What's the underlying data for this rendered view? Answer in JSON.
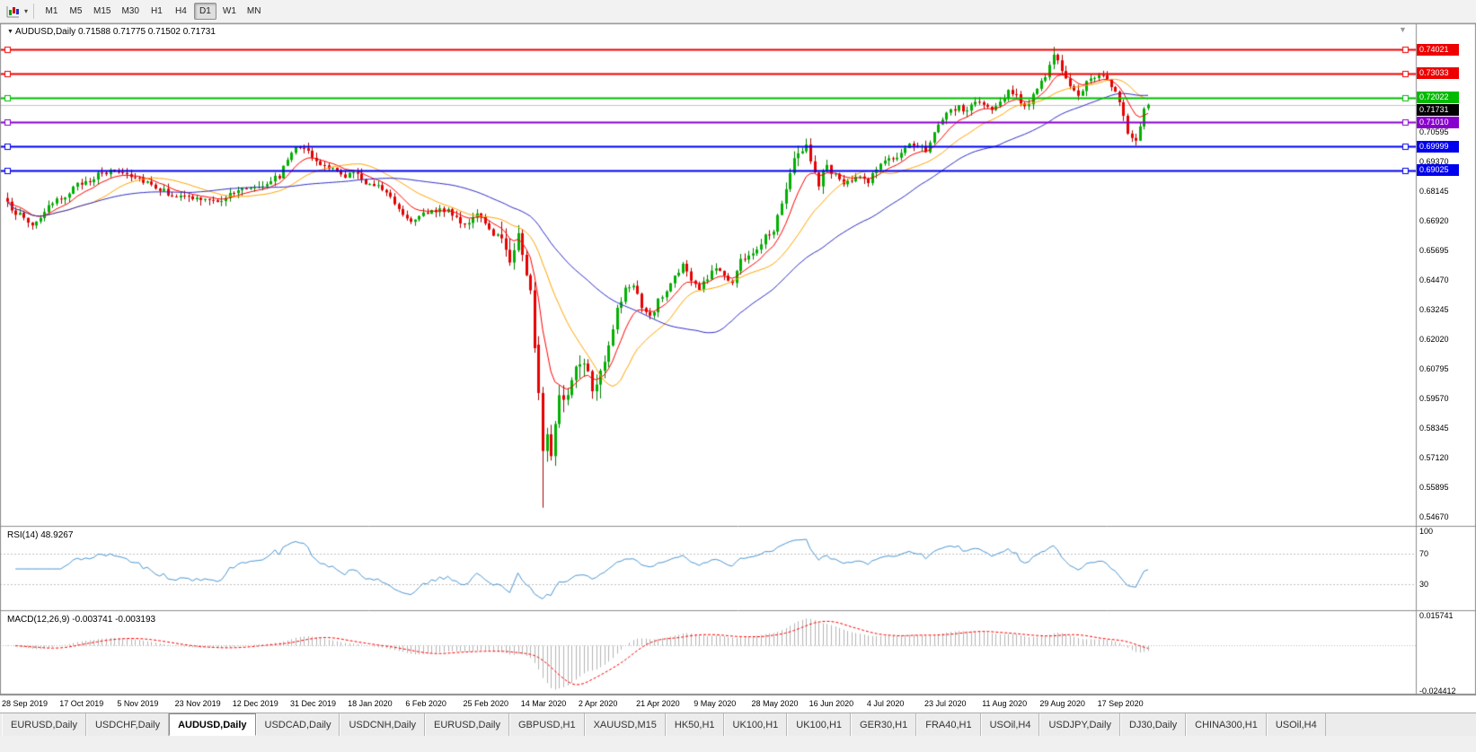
{
  "toolbar": {
    "caret_icon": "▾",
    "periods": [
      {
        "label": "M1",
        "active": false
      },
      {
        "label": "M5",
        "active": false
      },
      {
        "label": "M15",
        "active": false
      },
      {
        "label": "M30",
        "active": false
      },
      {
        "label": "H1",
        "active": false
      },
      {
        "label": "H4",
        "active": false
      },
      {
        "label": "D1",
        "active": true
      },
      {
        "label": "W1",
        "active": false
      },
      {
        "label": "MN",
        "active": false
      }
    ]
  },
  "chart": {
    "collapse_triangle": "▼",
    "title_symbol": "AUDUSD,Daily",
    "title_ohlc": "0.71588 0.71775 0.71502 0.71731",
    "rsi_title": "RSI(14)",
    "rsi_value": "48.9267",
    "macd_title": "MACD(12,26,9)",
    "macd_values": "-0.003741 -0.003193",
    "scroll_marker_icon": "▼"
  },
  "chart_data": {
    "type": "candlestick",
    "symbol": "AUDUSD",
    "timeframe": "Daily",
    "title": "AUDUSD,Daily",
    "ohlc": {
      "open": 0.71588,
      "high": 0.71775,
      "low": 0.71502,
      "close": 0.71731
    },
    "n_candles": 278,
    "y_axis": {
      "max": 0.751,
      "min": 0.543,
      "grid_labels": [
        "0.70595",
        "0.69370",
        "0.68145",
        "0.66920",
        "0.65695",
        "0.64470",
        "0.63245",
        "0.62020",
        "0.60795",
        "0.59570",
        "0.58345",
        "0.57120",
        "0.55895",
        "0.54670"
      ]
    },
    "x_labels": [
      "28 Sep 2019",
      "17 Oct 2019",
      "5 Nov 2019",
      "23 Nov 2019",
      "12 Dec 2019",
      "31 Dec 2019",
      "18 Jan 2020",
      "6 Feb 2020",
      "25 Feb 2020",
      "14 Mar 2020",
      "2 Apr 2020",
      "21 Apr 2020",
      "9 May 2020",
      "28 May 2020",
      "16 Jun 2020",
      "4 Jul 2020",
      "23 Jul 2020",
      "11 Aug 2020",
      "29 Aug 2020",
      "17 Sep 2020"
    ],
    "h_lines": [
      {
        "label": "0.74021",
        "value": 0.74021,
        "color": "#ee0000",
        "width": 2
      },
      {
        "label": "0.73033",
        "value": 0.73033,
        "color": "#ee0000",
        "width": 2
      },
      {
        "label": "0.72022",
        "value": 0.72022,
        "color": "#00bb00",
        "width": 2
      },
      {
        "label": "0.71010",
        "value": 0.7101,
        "color": "#8800cc",
        "width": 2
      },
      {
        "label": "0.69999",
        "value": 0.69999,
        "color": "#0000ee",
        "width": 2
      },
      {
        "label": "0.69025",
        "value": 0.69025,
        "color": "#0000ee",
        "width": 2
      }
    ],
    "current_price": {
      "label": "0.71731",
      "value": 0.71731,
      "badge_color": "#000000",
      "line_color": "#c4c4c4"
    },
    "candle_colors": {
      "up": "#00b000",
      "up_border": "#007d00",
      "down": "#e60000",
      "down_border": "#aa0000"
    },
    "moving_averages": [
      {
        "type": "ema",
        "period": 9,
        "color": "#ff0000"
      },
      {
        "type": "sma",
        "period": 20,
        "color": "#ffa500"
      },
      {
        "type": "sma",
        "period": 45,
        "color": "#2d2dc8"
      }
    ],
    "noise": {
      "base": 0.0013,
      "ranges": [
        [
          120,
          145,
          0.0032
        ],
        [
          188,
          198,
          0.002
        ]
      ],
      "wick_factor": 1.8,
      "seed": 987654321
    },
    "close_path_anchors": [
      [
        0,
        0.676
      ],
      [
        3,
        0.6715
      ],
      [
        6,
        0.6675
      ],
      [
        10,
        0.6745
      ],
      [
        14,
        0.68
      ],
      [
        18,
        0.685
      ],
      [
        22,
        0.688
      ],
      [
        26,
        0.69
      ],
      [
        30,
        0.6885
      ],
      [
        34,
        0.6855
      ],
      [
        38,
        0.6815
      ],
      [
        42,
        0.679
      ],
      [
        46,
        0.6785
      ],
      [
        50,
        0.677
      ],
      [
        54,
        0.68
      ],
      [
        58,
        0.683
      ],
      [
        62,
        0.6845
      ],
      [
        66,
        0.688
      ],
      [
        70,
        0.701
      ],
      [
        72,
        0.7
      ],
      [
        75,
        0.693
      ],
      [
        78,
        0.6915
      ],
      [
        81,
        0.688
      ],
      [
        84,
        0.689
      ],
      [
        87,
        0.6855
      ],
      [
        90,
        0.684
      ],
      [
        93,
        0.68
      ],
      [
        96,
        0.672
      ],
      [
        99,
        0.669
      ],
      [
        102,
        0.673
      ],
      [
        105,
        0.6745
      ],
      [
        108,
        0.672
      ],
      [
        111,
        0.668
      ],
      [
        114,
        0.6715
      ],
      [
        117,
        0.6655
      ],
      [
        120,
        0.662
      ],
      [
        122,
        0.6545
      ],
      [
        124,
        0.663
      ],
      [
        126,
        0.648
      ],
      [
        127,
        0.639
      ],
      [
        128,
        0.618
      ],
      [
        129,
        0.598
      ],
      [
        130,
        0.574
      ],
      [
        131,
        0.581
      ],
      [
        132,
        0.575
      ],
      [
        133,
        0.583
      ],
      [
        134,
        0.595
      ],
      [
        136,
        0.598
      ],
      [
        138,
        0.609
      ],
      [
        140,
        0.613
      ],
      [
        142,
        0.601
      ],
      [
        144,
        0.608
      ],
      [
        146,
        0.618
      ],
      [
        148,
        0.632
      ],
      [
        150,
        0.6405
      ],
      [
        152,
        0.6435
      ],
      [
        154,
        0.633
      ],
      [
        156,
        0.629
      ],
      [
        158,
        0.636
      ],
      [
        160,
        0.64
      ],
      [
        162,
        0.6465
      ],
      [
        164,
        0.651
      ],
      [
        166,
        0.6445
      ],
      [
        168,
        0.641
      ],
      [
        170,
        0.6455
      ],
      [
        172,
        0.6505
      ],
      [
        174,
        0.6465
      ],
      [
        176,
        0.644
      ],
      [
        178,
        0.653
      ],
      [
        180,
        0.655
      ],
      [
        182,
        0.6565
      ],
      [
        184,
        0.664
      ],
      [
        186,
        0.6655
      ],
      [
        188,
        0.678
      ],
      [
        190,
        0.69
      ],
      [
        192,
        0.698
      ],
      [
        194,
        0.701
      ],
      [
        195,
        0.693
      ],
      [
        197,
        0.685
      ],
      [
        199,
        0.692
      ],
      [
        201,
        0.688
      ],
      [
        203,
        0.684
      ],
      [
        205,
        0.686
      ],
      [
        207,
        0.687
      ],
      [
        209,
        0.686
      ],
      [
        211,
        0.691
      ],
      [
        213,
        0.694
      ],
      [
        215,
        0.695
      ],
      [
        217,
        0.6965
      ],
      [
        219,
        0.7
      ],
      [
        221,
        0.701
      ],
      [
        223,
        0.699
      ],
      [
        225,
        0.706
      ],
      [
        227,
        0.7105
      ],
      [
        229,
        0.715
      ],
      [
        231,
        0.716
      ],
      [
        233,
        0.7145
      ],
      [
        235,
        0.719
      ],
      [
        237,
        0.717
      ],
      [
        239,
        0.715
      ],
      [
        241,
        0.7175
      ],
      [
        243,
        0.724
      ],
      [
        245,
        0.721
      ],
      [
        247,
        0.7165
      ],
      [
        249,
        0.7205
      ],
      [
        251,
        0.726
      ],
      [
        253,
        0.733
      ],
      [
        254,
        0.738
      ],
      [
        256,
        0.731
      ],
      [
        258,
        0.724
      ],
      [
        260,
        0.7215
      ],
      [
        262,
        0.726
      ],
      [
        264,
        0.729
      ],
      [
        266,
        0.7305
      ],
      [
        268,
        0.7255
      ],
      [
        270,
        0.719
      ],
      [
        272,
        0.706
      ],
      [
        274,
        0.703
      ],
      [
        275,
        0.7075
      ],
      [
        276,
        0.7159
      ],
      [
        277,
        0.71731
      ]
    ],
    "forced_candles": {
      "129": [
        0.618,
        0.6215,
        0.595,
        0.598
      ],
      "130": [
        0.598,
        0.6005,
        0.5505,
        0.574
      ],
      "254": [
        0.734,
        0.7413,
        0.732,
        0.738
      ],
      "277": [
        0.71588,
        0.71775,
        0.71502,
        0.71731
      ]
    },
    "rsi": {
      "period": 14,
      "color": "#4a96d2",
      "levels": [
        "100",
        "70",
        "30"
      ],
      "level_values": [
        100,
        70,
        30
      ],
      "dashed_levels": [
        70,
        30
      ],
      "current": "48.9267"
    },
    "macd": {
      "fast": 12,
      "slow": 26,
      "signal": 9,
      "histogram_color": "#b4b4b4",
      "signal_color": "#ff0000",
      "scale_top": 0.015741,
      "scale_bottom": -0.024412,
      "scale_top_label": "0.015741",
      "scale_bottom_label": "-0.024412",
      "current": "-0.003741 -0.003193"
    }
  },
  "tabs": {
    "items": [
      {
        "label": "EURUSD,Daily",
        "active": false
      },
      {
        "label": "USDCHF,Daily",
        "active": false
      },
      {
        "label": "AUDUSD,Daily",
        "active": true
      },
      {
        "label": "USDCAD,Daily",
        "active": false
      },
      {
        "label": "USDCNH,Daily",
        "active": false
      },
      {
        "label": "EURUSD,Daily",
        "active": false
      },
      {
        "label": "GBPUSD,H1",
        "active": false
      },
      {
        "label": "XAUUSD,M15",
        "active": false
      },
      {
        "label": "HK50,H1",
        "active": false
      },
      {
        "label": "UK100,H1",
        "active": false
      },
      {
        "label": "UK100,H1",
        "active": false
      },
      {
        "label": "GER30,H1",
        "active": false
      },
      {
        "label": "FRA40,H1",
        "active": false
      },
      {
        "label": "USOil,H4",
        "active": false
      },
      {
        "label": "USDJPY,Daily",
        "active": false
      },
      {
        "label": "DJ30,Daily",
        "active": false
      },
      {
        "label": "CHINA300,H1",
        "active": false
      },
      {
        "label": "USOil,H4",
        "active": false
      }
    ]
  }
}
